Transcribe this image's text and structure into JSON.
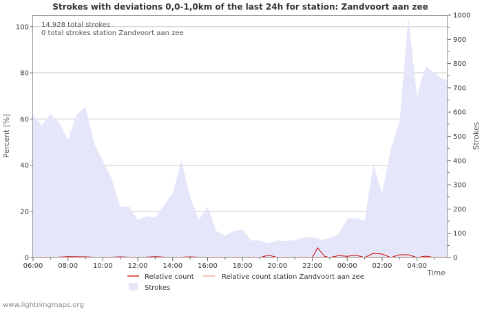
{
  "chart_data": {
    "type": "area",
    "title": "Strokes with deviations 0,0-1,0km of the last 24h for station: Zandvoort aan zee",
    "xlabel": "Time",
    "ylabel_left": "Percent   [%]",
    "ylabel_right": "Strokes",
    "ylim_left": [
      0,
      105
    ],
    "ylim_right": [
      0,
      1000
    ],
    "x_range_hours": [
      0,
      23.75
    ],
    "x_tick_labels": [
      "06:00",
      "08:00",
      "10:00",
      "12:00",
      "14:00",
      "16:00",
      "18:00",
      "20:00",
      "22:00",
      "00:00",
      "02:00",
      "04:00"
    ],
    "y_left_tick_labels": [
      "0",
      "20",
      "40",
      "60",
      "80",
      "100"
    ],
    "y_right_tick_labels": [
      "0",
      "100",
      "200",
      "300",
      "400",
      "500",
      "600",
      "700",
      "800",
      "900",
      "1000"
    ],
    "annotations": [
      "14.928 total strokes",
      "0 total strokes station Zandvoort aan zee"
    ],
    "series": [
      {
        "name": "Strokes",
        "axis": "right",
        "color": "#e6e6fa",
        "x_hours": [
          0,
          0.5,
          1,
          1.5,
          2,
          2.5,
          3,
          3.5,
          4,
          4.5,
          5,
          5.5,
          6,
          6.5,
          7,
          7.5,
          8,
          8.5,
          9,
          9.5,
          10,
          10.5,
          11,
          11.5,
          12,
          12.5,
          13,
          13.5,
          14,
          14.5,
          15,
          15.5,
          16,
          16.5,
          17,
          17.5,
          18,
          18.5,
          19,
          19.5,
          20,
          20.5,
          21,
          21.5,
          22,
          22.5,
          23,
          23.5,
          23.75
        ],
        "values": [
          590,
          545,
          592,
          555,
          485,
          590,
          622,
          470,
          400,
          325,
          210,
          210,
          155,
          170,
          165,
          215,
          265,
          400,
          250,
          155,
          210,
          110,
          90,
          110,
          115,
          70,
          70,
          58,
          70,
          68,
          72,
          82,
          85,
          72,
          82,
          95,
          160,
          162,
          152,
          385,
          265,
          450,
          560,
          995,
          665,
          790,
          760,
          735,
          735
        ]
      },
      {
        "name": "Relative count",
        "axis": "left",
        "color": "#cc0000",
        "x_hours": [
          0,
          1,
          2,
          3,
          4,
          5,
          6,
          7,
          8,
          9,
          10,
          11,
          12,
          13,
          13.5,
          14,
          15,
          16,
          16.3,
          16.7,
          17,
          17.5,
          18,
          18.5,
          19,
          19.5,
          20,
          20.5,
          21,
          21.5,
          22,
          22.5,
          23,
          23.75
        ],
        "values": [
          0,
          0,
          0.4,
          0.3,
          0,
          0.3,
          0,
          0.4,
          0,
          0.3,
          0,
          0,
          0,
          0,
          1,
          0,
          0,
          0,
          4.2,
          0.5,
          0,
          0.8,
          0.5,
          1,
          0,
          1.8,
          1.5,
          0,
          1.2,
          1.2,
          0,
          0.6,
          0,
          0
        ]
      },
      {
        "name": "Relative count station Zandvoort aan zee",
        "axis": "left",
        "color": "#f4a090",
        "x_hours": [
          0,
          23.75
        ],
        "values": [
          0,
          0
        ]
      }
    ],
    "legend": [
      "Relative count",
      "Relative count station Zandvoort aan zee",
      "Strokes"
    ],
    "legend_position": "bottom"
  },
  "footer": {
    "credit": "www.lightningmaps.org"
  }
}
